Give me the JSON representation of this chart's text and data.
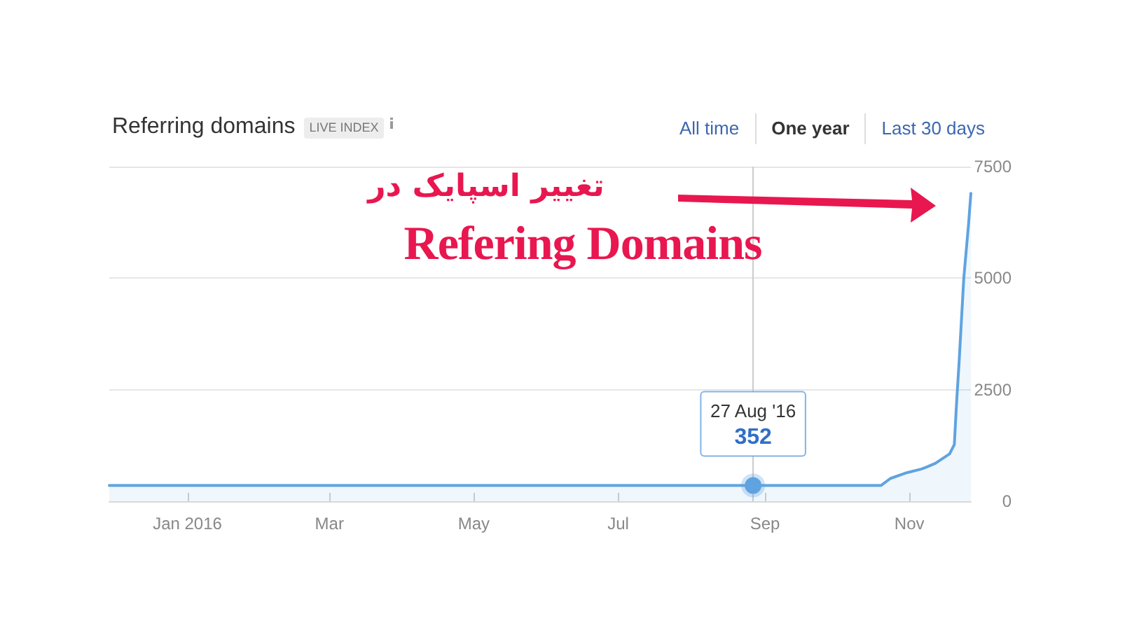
{
  "chart_data": {
    "type": "area",
    "title": "Referring domains",
    "subtitle": "LIVE INDEX",
    "annotations": [
      "All time",
      "One year",
      "Last 30 days",
      "تغییر اسپایک در",
      "Refering Domains",
      "27 Aug '16"
    ],
    "x": [
      "2015-11-29",
      "2016-08-27",
      "2016-10-20",
      "2016-10-24",
      "2016-10-31",
      "2016-11-06",
      "2016-11-08",
      "2016-11-12",
      "2016-11-18",
      "2016-11-20",
      "2016-11-21",
      "2016-11-22",
      "2016-11-23",
      "2016-11-24",
      "2016-11-25",
      "2016-11-26",
      "2016-11-27"
    ],
    "values": [
      352,
      352,
      352,
      510,
      640,
      720,
      760,
      850,
      1060,
      1270,
      2250,
      3100,
      4050,
      5000,
      5600,
      6200,
      6900
    ],
    "value_labels": [
      null,
      "352",
      null,
      null,
      null,
      null,
      null,
      null,
      null,
      null,
      null,
      null,
      null,
      null,
      null,
      null,
      null
    ],
    "color": "#5fa3e0",
    "xlim": [
      "2015-11-29",
      "2016-11-27"
    ],
    "xticks": [
      {
        "value": "2016-01-01",
        "label": "Jan 2016"
      },
      {
        "value": "2016-03-01",
        "label": "Mar"
      },
      {
        "value": "2016-05-01",
        "label": "May"
      },
      {
        "value": "2016-07-01",
        "label": "Jul"
      },
      {
        "value": "2016-09-01",
        "label": "Sep"
      },
      {
        "value": "2016-11-01",
        "label": "Nov"
      }
    ],
    "ylim": [
      0,
      7500
    ],
    "yticks": [
      0,
      2500,
      5000,
      7500
    ],
    "grid": "y",
    "marker": "none",
    "ref_lines": [
      {
        "axis": "x",
        "value": "2016-08-27",
        "color": "#cccccc"
      }
    ]
  }
}
